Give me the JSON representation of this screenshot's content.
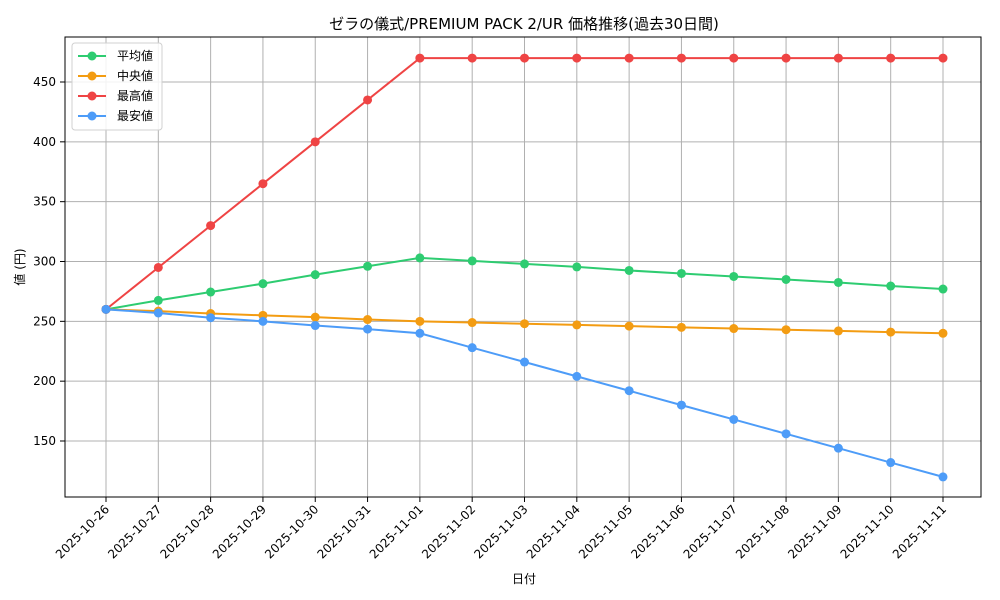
{
  "chart_data": {
    "type": "line",
    "title": "ゼラの儀式/PREMIUM PACK 2/UR 価格推移(過去30日間)",
    "xlabel": "日付",
    "ylabel": "値 (円)",
    "ylim": [
      104,
      487
    ],
    "yticks": [
      150,
      200,
      250,
      300,
      350,
      400,
      450
    ],
    "grid": true,
    "legend_position": "upper left",
    "x": [
      "2025-10-26",
      "2025-10-27",
      "2025-10-28",
      "2025-10-29",
      "2025-10-30",
      "2025-10-31",
      "2025-11-01",
      "2025-11-02",
      "2025-11-03",
      "2025-11-04",
      "2025-11-05",
      "2025-11-06",
      "2025-11-07",
      "2025-11-08",
      "2025-11-09",
      "2025-11-10",
      "2025-11-11"
    ],
    "series": [
      {
        "name": "平均値",
        "color": "#2ecc71",
        "values": [
          260,
          267.5,
          274.5,
          281.5,
          289,
          296,
          303,
          300.5,
          298,
          295.5,
          292.5,
          290,
          287.5,
          285,
          282.5,
          279.5,
          277
        ]
      },
      {
        "name": "中央値",
        "color": "#f39c12",
        "values": [
          260,
          258.5,
          256.5,
          255,
          253.5,
          251.5,
          250,
          249,
          248,
          247,
          246,
          245,
          244,
          243,
          242,
          241,
          240
        ]
      },
      {
        "name": "最高値",
        "color": "#ef4444",
        "values": [
          260,
          295,
          330,
          365,
          400,
          435,
          470,
          470,
          470,
          470,
          470,
          470,
          470,
          470,
          470,
          470,
          470
        ]
      },
      {
        "name": "最安値",
        "color": "#4d9cf8",
        "values": [
          260,
          257,
          253,
          250,
          246.5,
          243.5,
          240,
          228,
          216,
          204,
          192,
          180,
          168,
          156,
          144,
          132,
          120
        ]
      }
    ]
  }
}
